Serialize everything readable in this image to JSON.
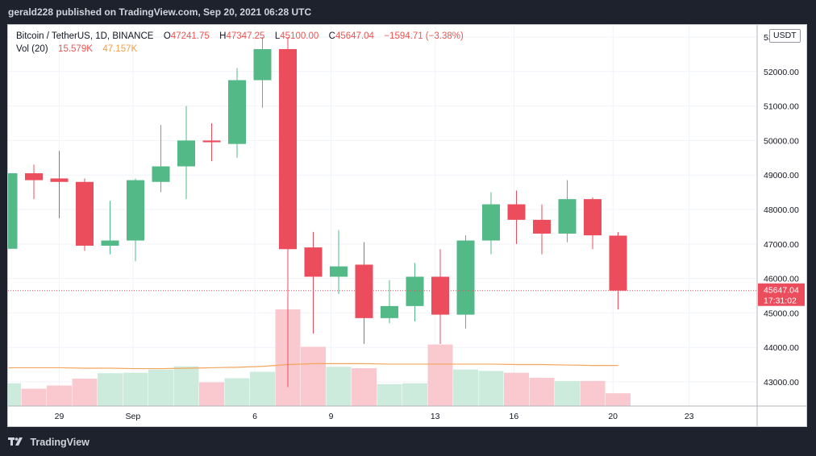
{
  "header": {
    "publisher_text": "gerald228 published on TradingView.com, Sep 20, 2021 06:28 UTC"
  },
  "legend": {
    "symbol": "Bitcoin / TetherUS, 1D, BINANCE",
    "open_label": "O",
    "open": "47241.75",
    "high_label": "H",
    "high": "47347.25",
    "low_label": "L",
    "low": "45100.00",
    "close_label": "C",
    "close": "45647.04",
    "change": "−1594.71 (−3.38%)",
    "vol_label": "Vol (20)",
    "vol_value": "15.579K",
    "vol_ma": "47.157K"
  },
  "currency_button": "USDT",
  "footer": {
    "brand": "TradingView"
  },
  "colors": {
    "up": "#53b987",
    "down": "#eb4d5c",
    "vol_up": "#cdebdc",
    "vol_down": "#f9c9cf",
    "ma": "#f5a65b",
    "price_line": "#eb4d5c",
    "grid": "#f0f3fa"
  },
  "chart_data": {
    "type": "candlestick",
    "symbol": "BTCUSDT",
    "interval": "1D",
    "x_tick_labels": [
      "29",
      "Sep",
      "6",
      "9",
      "13",
      "16",
      "20",
      "23"
    ],
    "y_tick_labels": [
      "43000.00",
      "44000.00",
      "45000.00",
      "46000.00",
      "47000.00",
      "48000.00",
      "49000.00",
      "50000.00",
      "51000.00",
      "52000.00",
      "53000.00"
    ],
    "ylim": [
      42300,
      53350
    ],
    "current_price_label": "45647.04",
    "countdown_label": "17:31:02",
    "candles": [
      {
        "date": "Aug 26",
        "open": 46860,
        "high": 49050,
        "low": 46860,
        "close": 49050,
        "volume": 50
      },
      {
        "date": "Aug 27",
        "open": 49050,
        "high": 49300,
        "low": 48300,
        "close": 48850,
        "volume": 38
      },
      {
        "date": "Aug 28",
        "open": 48900,
        "high": 49700,
        "low": 47750,
        "close": 48800,
        "volume": 45
      },
      {
        "date": "Aug 29",
        "open": 48800,
        "high": 48900,
        "low": 46800,
        "close": 46950,
        "volume": 60
      },
      {
        "date": "Aug 30",
        "open": 46950,
        "high": 48250,
        "low": 46700,
        "close": 47100,
        "volume": 72
      },
      {
        "date": "Aug 31",
        "open": 47100,
        "high": 48900,
        "low": 46500,
        "close": 48850,
        "volume": 73
      },
      {
        "date": "Sep 1",
        "open": 48800,
        "high": 50450,
        "low": 48500,
        "close": 49250,
        "volume": 80
      },
      {
        "date": "Sep 2",
        "open": 49250,
        "high": 51000,
        "low": 48300,
        "close": 50000,
        "volume": 87
      },
      {
        "date": "Sep 3",
        "open": 50000,
        "high": 50500,
        "low": 49400,
        "close": 49950,
        "volume": 52
      },
      {
        "date": "Sep 4",
        "open": 49900,
        "high": 52100,
        "low": 49500,
        "close": 51750,
        "volume": 61
      },
      {
        "date": "Sep 5",
        "open": 51750,
        "high": 53000,
        "low": 50950,
        "close": 52650,
        "volume": 75
      },
      {
        "date": "Sep 6",
        "open": 52650,
        "high": 53000,
        "low": 42850,
        "close": 46850,
        "volume": 212
      },
      {
        "date": "Sep 7",
        "open": 46900,
        "high": 47350,
        "low": 44400,
        "close": 46050,
        "volume": 130
      },
      {
        "date": "Sep 8",
        "open": 46050,
        "high": 47400,
        "low": 45550,
        "close": 46350,
        "volume": 86
      },
      {
        "date": "Sep 9",
        "open": 46400,
        "high": 47050,
        "low": 44100,
        "close": 44850,
        "volume": 83
      },
      {
        "date": "Sep 10",
        "open": 44850,
        "high": 45950,
        "low": 44700,
        "close": 45200,
        "volume": 48
      },
      {
        "date": "Sep 11",
        "open": 45200,
        "high": 46450,
        "low": 44750,
        "close": 46050,
        "volume": 50
      },
      {
        "date": "Sep 12",
        "open": 46050,
        "high": 46850,
        "low": 44100,
        "close": 44950,
        "volume": 135
      },
      {
        "date": "Sep 13",
        "open": 44950,
        "high": 47250,
        "low": 44550,
        "close": 47100,
        "volume": 80
      },
      {
        "date": "Sep 14",
        "open": 47100,
        "high": 48500,
        "low": 46700,
        "close": 48150,
        "volume": 77
      },
      {
        "date": "Sep 15",
        "open": 48150,
        "high": 48550,
        "low": 47000,
        "close": 47700,
        "volume": 73
      },
      {
        "date": "Sep 16",
        "open": 47700,
        "high": 48150,
        "low": 46700,
        "close": 47300,
        "volume": 62
      },
      {
        "date": "Sep 17",
        "open": 47300,
        "high": 48850,
        "low": 47050,
        "close": 48300,
        "volume": 55
      },
      {
        "date": "Sep 18",
        "open": 48300,
        "high": 48350,
        "low": 46850,
        "close": 47250,
        "volume": 55
      },
      {
        "date": "Sep 19",
        "open": 47241.75,
        "high": 47347.25,
        "low": 45100,
        "close": 45647.04,
        "volume": 28
      }
    ],
    "volume_ma": [
      84,
      84,
      84,
      83,
      83,
      82,
      82,
      83,
      84,
      85,
      87,
      91,
      93,
      93,
      93,
      92,
      92,
      92,
      92,
      92,
      91,
      91,
      90,
      89,
      89
    ]
  }
}
